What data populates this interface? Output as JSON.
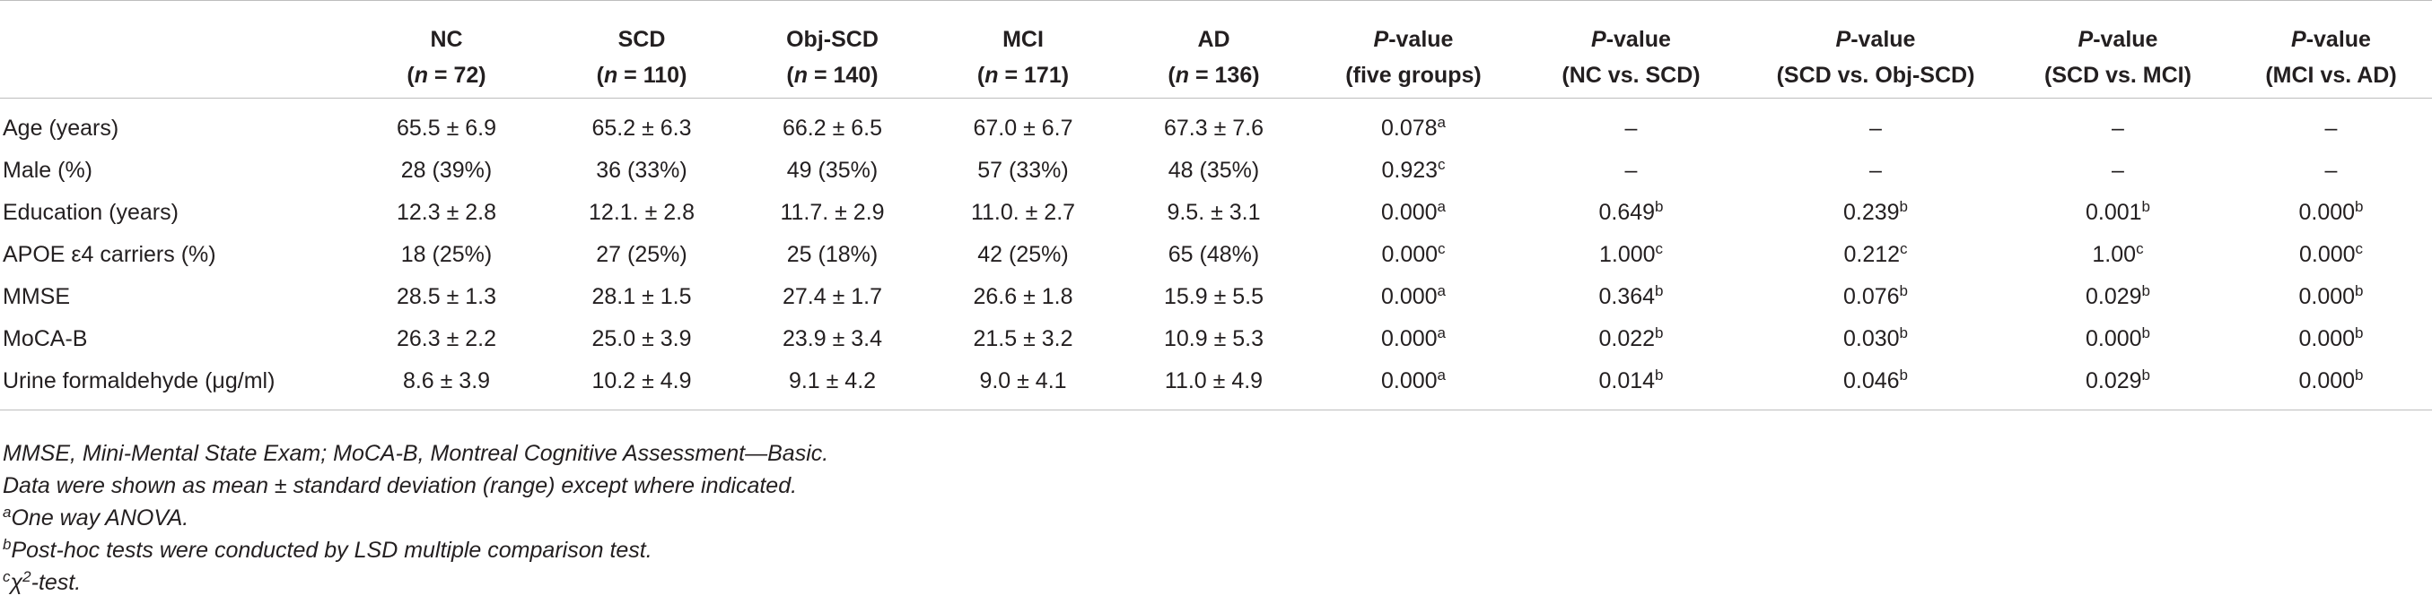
{
  "table": {
    "headers": [
      {
        "name": "",
        "sub": ""
      },
      {
        "name": "NC",
        "n": "72"
      },
      {
        "name": "SCD",
        "n": "110"
      },
      {
        "name": "Obj-SCD",
        "n": "140"
      },
      {
        "name": "MCI",
        "n": "171"
      },
      {
        "name": "AD",
        "n": "136"
      },
      {
        "p": "P",
        "rest": "-value",
        "sub": "(five groups)"
      },
      {
        "p": "P",
        "rest": "-value",
        "sub": "(NC vs. SCD)"
      },
      {
        "p": "P",
        "rest": "-value",
        "sub": "(SCD vs. Obj-SCD)"
      },
      {
        "p": "P",
        "rest": "-value",
        "sub": "(SCD vs. MCI)"
      },
      {
        "p": "P",
        "rest": "-value",
        "sub": "(MCI vs. AD)"
      }
    ],
    "n_label": "n",
    "rows": [
      {
        "label": "Age (years)",
        "nc": "65.5 ± 6.9",
        "scd": "65.2 ± 6.3",
        "objscd": "66.2 ± 6.5",
        "mci": "67.0 ± 6.7",
        "ad": "67.3 ± 7.6",
        "p5": "0.078",
        "p5s": "a",
        "p1": "–",
        "p1s": "",
        "p2": "–",
        "p2s": "",
        "p3": "–",
        "p3s": "",
        "p4": "–",
        "p4s": ""
      },
      {
        "label": "Male (%)",
        "nc": "28 (39%)",
        "scd": "36 (33%)",
        "objscd": "49 (35%)",
        "mci": "57 (33%)",
        "ad": "48 (35%)",
        "p5": "0.923",
        "p5s": "c",
        "p1": "–",
        "p1s": "",
        "p2": "–",
        "p2s": "",
        "p3": "–",
        "p3s": "",
        "p4": "–",
        "p4s": ""
      },
      {
        "label": "Education (years)",
        "nc": "12.3 ± 2.8",
        "scd": "12.1. ± 2.8",
        "objscd": "11.7. ± 2.9",
        "mci": "11.0. ± 2.7",
        "ad": "9.5. ± 3.1",
        "p5": "0.000",
        "p5s": "a",
        "p1": "0.649",
        "p1s": "b",
        "p2": "0.239",
        "p2s": "b",
        "p3": "0.001",
        "p3s": "b",
        "p4": "0.000",
        "p4s": "b"
      },
      {
        "label": "APOE ε4 carriers (%)",
        "nc": "18 (25%)",
        "scd": "27 (25%)",
        "objscd": "25 (18%)",
        "mci": "42 (25%)",
        "ad": "65 (48%)",
        "p5": "0.000",
        "p5s": "c",
        "p1": "1.000",
        "p1s": "c",
        "p2": "0.212",
        "p2s": "c",
        "p3": "1.00",
        "p3s": "c",
        "p4": "0.000",
        "p4s": "c"
      },
      {
        "label": "MMSE",
        "nc": "28.5 ± 1.3",
        "scd": "28.1 ± 1.5",
        "objscd": "27.4 ± 1.7",
        "mci": "26.6 ± 1.8",
        "ad": "15.9 ± 5.5",
        "p5": "0.000",
        "p5s": "a",
        "p1": "0.364",
        "p1s": "b",
        "p2": "0.076",
        "p2s": "b",
        "p3": "0.029",
        "p3s": "b",
        "p4": "0.000",
        "p4s": "b"
      },
      {
        "label": "MoCA-B",
        "nc": "26.3 ± 2.2",
        "scd": "25.0 ± 3.9",
        "objscd": "23.9 ± 3.4",
        "mci": "21.5 ± 3.2",
        "ad": "10.9 ± 5.3",
        "p5": "0.000",
        "p5s": "a",
        "p1": "0.022",
        "p1s": "b",
        "p2": "0.030",
        "p2s": "b",
        "p3": "0.000",
        "p3s": "b",
        "p4": "0.000",
        "p4s": "b"
      },
      {
        "label": "Urine formaldehyde (μg/ml)",
        "nc": "8.6 ± 3.9",
        "scd": "10.2 ± 4.9",
        "objscd": "9.1 ± 4.2",
        "mci": "9.0 ± 4.1",
        "ad": "11.0 ± 4.9",
        "p5": "0.000",
        "p5s": "a",
        "p1": "0.014",
        "p1s": "b",
        "p2": "0.046",
        "p2s": "b",
        "p3": "0.029",
        "p3s": "b",
        "p4": "0.000",
        "p4s": "b"
      }
    ]
  },
  "notes": {
    "abbrev": "MMSE, Mini-Mental State Exam; MoCA-B, Montreal Cognitive Assessment—Basic.",
    "data_shown": "Data were shown as mean ± standard deviation (range) except where indicated.",
    "a_mark": "a",
    "a_text": "One way ANOVA.",
    "b_mark": "b",
    "b_text": "Post-hoc tests were conducted by LSD multiple comparison test.",
    "c_mark": "c",
    "c_text_pre": "χ",
    "c_text_sup": "2",
    "c_text_post": "-test."
  }
}
